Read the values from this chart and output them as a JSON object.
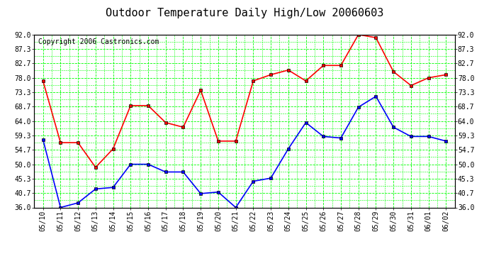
{
  "title": "Outdoor Temperature Daily High/Low 20060603",
  "copyright": "Copyright 2006 Castronics.com",
  "x_labels": [
    "05/10",
    "05/11",
    "05/12",
    "05/13",
    "05/14",
    "05/15",
    "05/16",
    "05/17",
    "05/18",
    "05/19",
    "05/20",
    "05/21",
    "05/22",
    "05/23",
    "05/24",
    "05/25",
    "05/26",
    "05/27",
    "05/28",
    "05/29",
    "05/30",
    "05/31",
    "06/01",
    "06/02"
  ],
  "high_temps": [
    77.0,
    57.0,
    57.0,
    49.0,
    55.0,
    69.0,
    69.0,
    63.5,
    62.0,
    74.0,
    57.5,
    57.5,
    77.0,
    79.0,
    80.5,
    77.0,
    82.0,
    82.0,
    92.0,
    91.0,
    80.0,
    75.5,
    78.0,
    79.0
  ],
  "low_temps": [
    58.0,
    36.0,
    37.5,
    42.0,
    42.5,
    50.0,
    50.0,
    47.5,
    47.5,
    40.5,
    41.0,
    36.0,
    44.5,
    45.5,
    55.0,
    63.5,
    59.0,
    58.5,
    68.5,
    72.0,
    62.0,
    59.0,
    59.0,
    57.5
  ],
  "high_color": "#ff0000",
  "low_color": "#0000ff",
  "bg_color": "#ffffff",
  "plot_bg_color": "#ffffff",
  "grid_color": "#00ff00",
  "y_ticks": [
    36.0,
    40.7,
    45.3,
    50.0,
    54.7,
    59.3,
    64.0,
    68.7,
    73.3,
    78.0,
    82.7,
    87.3,
    92.0
  ],
  "y_min": 36.0,
  "y_max": 92.0,
  "title_fontsize": 11,
  "copyright_fontsize": 7,
  "axis_fontsize": 7,
  "marker": "s",
  "marker_size": 3,
  "line_width": 1.2
}
